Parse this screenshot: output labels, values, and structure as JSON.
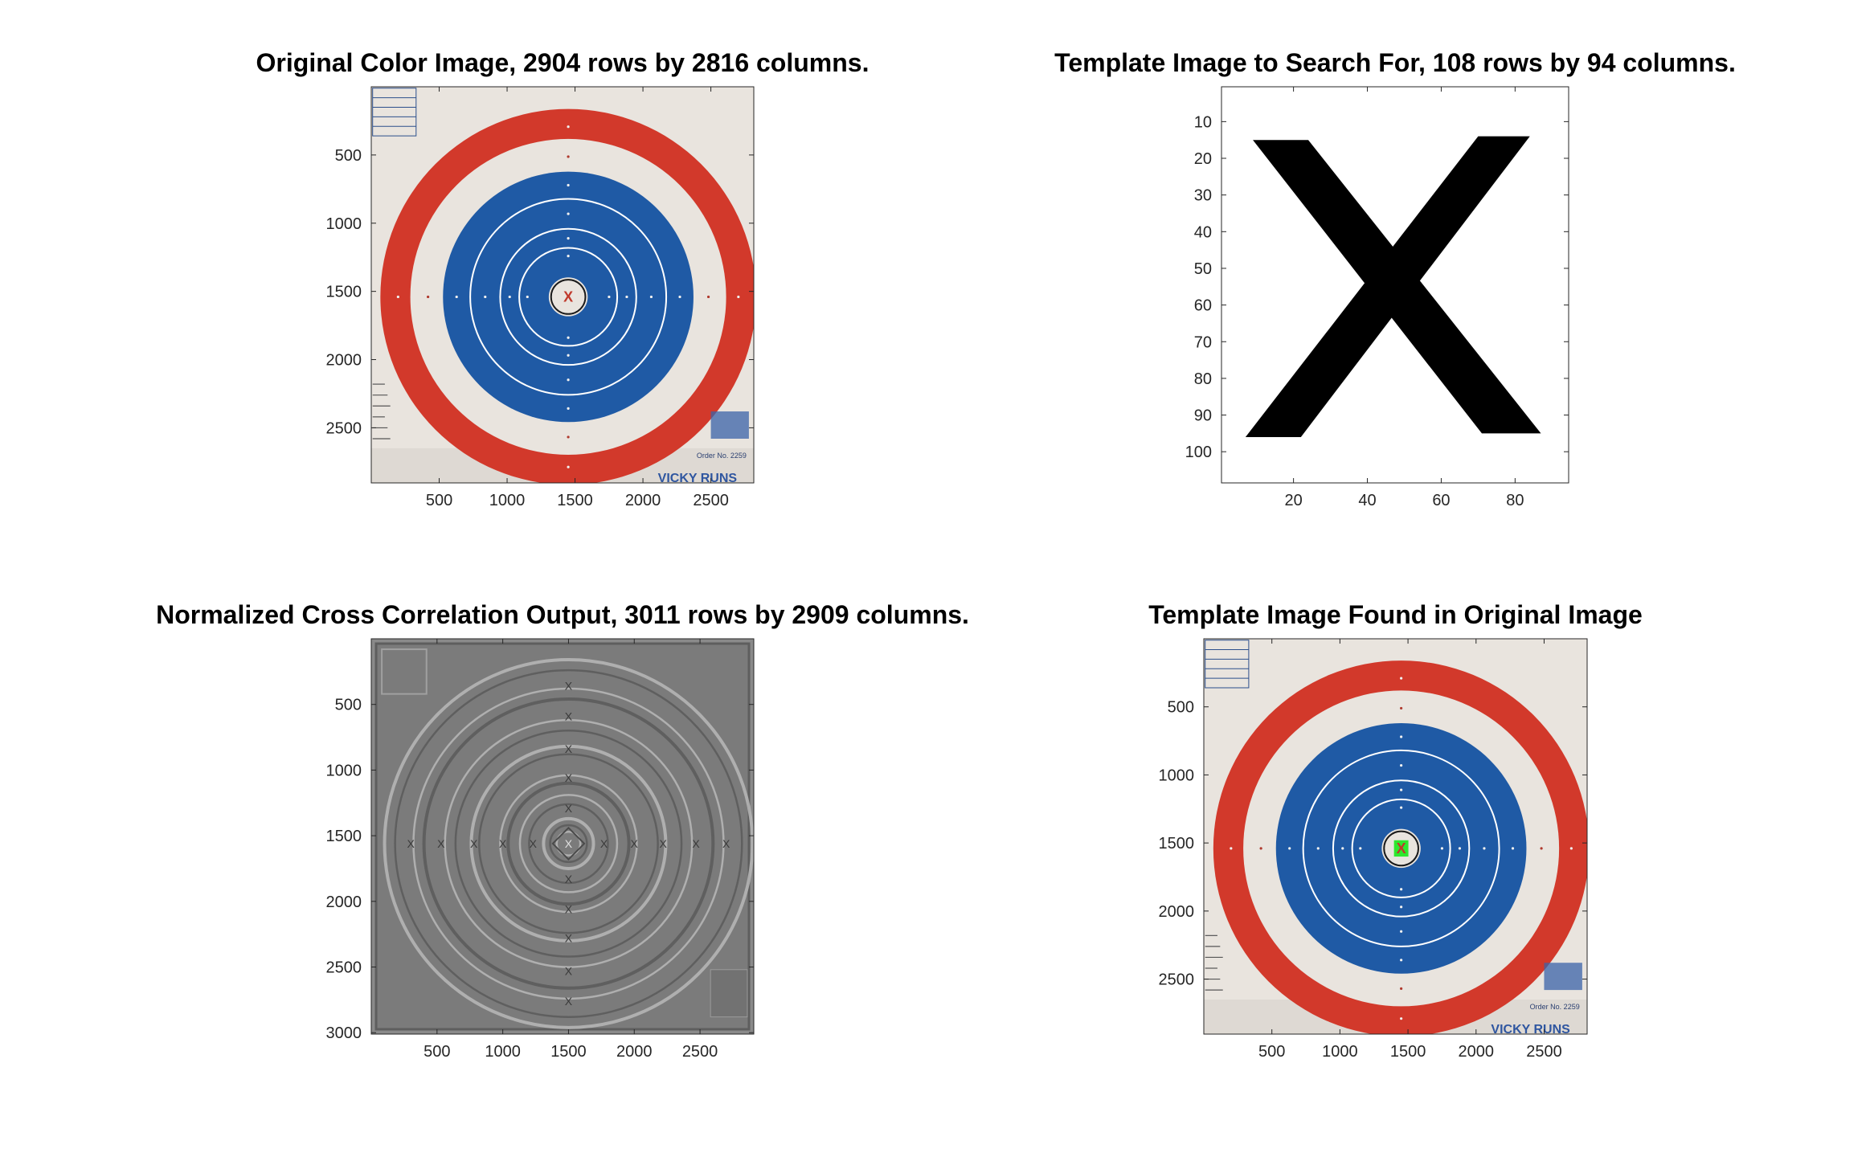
{
  "figure": {
    "background": "#ffffff"
  },
  "chart_data": [
    {
      "type": "image",
      "title": "Original Color Image, 2904 rows by 2816 columns.",
      "image_rows": 2904,
      "image_cols": 2816,
      "x_ticks": [
        500,
        1000,
        1500,
        2000,
        2500
      ],
      "y_ticks": [
        500,
        1000,
        1500,
        2000,
        2500
      ],
      "xlim": [
        0,
        2816
      ],
      "ylim": [
        0,
        2904
      ],
      "content": "target",
      "center": [
        1450,
        1540
      ],
      "ring_radii": [
        1380,
        1160,
        920,
        720,
        500,
        360,
        260,
        140,
        80
      ],
      "colors": {
        "red": "#d2392b",
        "blue": "#1f5aa5",
        "cream": "#e9e4de",
        "white_ring": "#ffffff"
      },
      "marker": {
        "label": "X",
        "color": "#c0392b"
      },
      "corner_text": "Order No. 2259",
      "bottom_brand": "VICKY RUNS"
    },
    {
      "type": "image",
      "title": "Template Image to Search For, 108 rows by 94 columns.",
      "image_rows": 108,
      "image_cols": 94,
      "x_ticks": [
        20,
        40,
        60,
        80
      ],
      "y_ticks": [
        10,
        20,
        30,
        40,
        50,
        60,
        70,
        80,
        90,
        100
      ],
      "xlim": [
        0.5,
        94.5
      ],
      "ylim": [
        0.5,
        108.5
      ],
      "content": "x-glyph",
      "glyph": "X"
    },
    {
      "type": "heatmap",
      "title": "Normalized Cross Correlation Output, 3011 rows by 2909 columns.",
      "image_rows": 3011,
      "image_cols": 2909,
      "x_ticks": [
        500,
        1000,
        1500,
        2000,
        2500
      ],
      "y_ticks": [
        500,
        1000,
        1500,
        2000,
        2500,
        3000
      ],
      "xlim": [
        0,
        2909
      ],
      "ylim": [
        0,
        3011
      ],
      "content": "correlation",
      "center": [
        1500,
        1560
      ],
      "colormap": "gray"
    },
    {
      "type": "image",
      "title": "Template Image Found in Original Image",
      "image_rows": 2904,
      "image_cols": 2816,
      "x_ticks": [
        500,
        1000,
        1500,
        2000,
        2500
      ],
      "y_ticks": [
        500,
        1000,
        1500,
        2000,
        2500
      ],
      "xlim": [
        0,
        2816
      ],
      "ylim": [
        0,
        2904
      ],
      "content": "target",
      "center": [
        1450,
        1540
      ],
      "ring_radii": [
        1380,
        1160,
        920,
        720,
        500,
        360,
        260,
        140,
        80
      ],
      "colors": {
        "red": "#d2392b",
        "blue": "#1f5aa5",
        "cream": "#e9e4de",
        "white_ring": "#ffffff",
        "highlight": "#2ee82e"
      },
      "marker": {
        "label": "X",
        "color": "#c0392b"
      },
      "found_box": {
        "row": 1486,
        "col": 1403,
        "height": 108,
        "width": 94
      },
      "corner_text": "Order No. 2259",
      "bottom_brand": "VICKY RUNS"
    }
  ]
}
